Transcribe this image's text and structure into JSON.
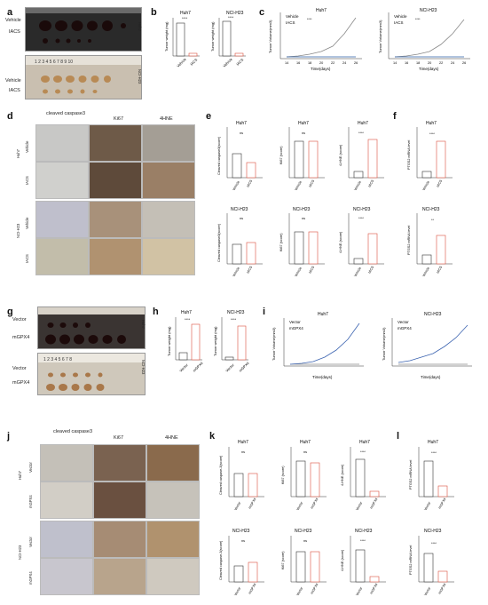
{
  "panels": [
    "a",
    "b",
    "c",
    "d",
    "e",
    "f",
    "g",
    "h",
    "i",
    "j",
    "k",
    "l"
  ],
  "top": {
    "groups": [
      "Vehicle",
      "IACS"
    ],
    "lines": [
      "Huh7",
      "NCI-H23"
    ],
    "b": [
      {
        "title": "Huh7",
        "ylabel": "Tumor weight (mg)",
        "x": [
          "Vehicle",
          "IACS"
        ],
        "sig": "****"
      },
      {
        "title": "NCI-H23",
        "ylabel": "Tumor weight (mg)",
        "x": [
          "Vehicle",
          "IACS"
        ],
        "sig": "****"
      }
    ],
    "c_ylabel": "Tumor Volume(mm3)",
    "c_xlabel": "Time(days)",
    "c_ticks": [
      "14",
      "16",
      "18",
      "20",
      "22",
      "24",
      "26"
    ],
    "c_sig": "****",
    "ihc_cols": [
      "cleaved caspase3",
      "Ki67",
      "4HNE"
    ],
    "e_ylabels": [
      "Cleaved caspase3(score)",
      "Ki67 (score)",
      "4-HNE (score)"
    ],
    "e_sig": [
      "ns",
      "ns",
      "****",
      "ns",
      "ns",
      "****"
    ],
    "f_ylabel": "PTGS2 mRNA level",
    "f_sig": [
      "****",
      "**"
    ]
  },
  "bottom": {
    "groups": [
      "Vector",
      "mGPX4"
    ],
    "lines": [
      "Huh7",
      "NCI-H23"
    ],
    "h": [
      {
        "title": "Huh7",
        "ylabel": "Tumor weight (mg)",
        "x": [
          "Vector",
          "mGPX4"
        ],
        "sig": "****"
      },
      {
        "title": "NCI-H23",
        "ylabel": "Tumor weight (mg)",
        "x": [
          "Vector",
          "mGPX4"
        ],
        "sig": "****"
      }
    ],
    "i_ylabel": "Tumor Volume(mm3)",
    "i_xlabel": "Time(days)",
    "ihc_cols": [
      "cleaved caspase3",
      "Ki67",
      "4HNE"
    ],
    "k_ylabels": [
      "Cleaved caspase-3(score)",
      "Ki67 (score)",
      "4-HNE (score)"
    ],
    "k_sig": [
      "ns",
      "ns",
      "****",
      "ns",
      "ns",
      "****"
    ],
    "l_ylabel": "PTGS2 mRNA level",
    "l_sig": [
      "****",
      "****"
    ]
  },
  "ruler_a": "1 2 3 4 5 6 7 8 9 10",
  "ruler_g": "1 2 3 4 5 6 7 8",
  "colors": {
    "control": "#555555",
    "treat": "#d9503f",
    "iacs": "#2e5fa8",
    "gpx4": "#3b63b0"
  }
}
